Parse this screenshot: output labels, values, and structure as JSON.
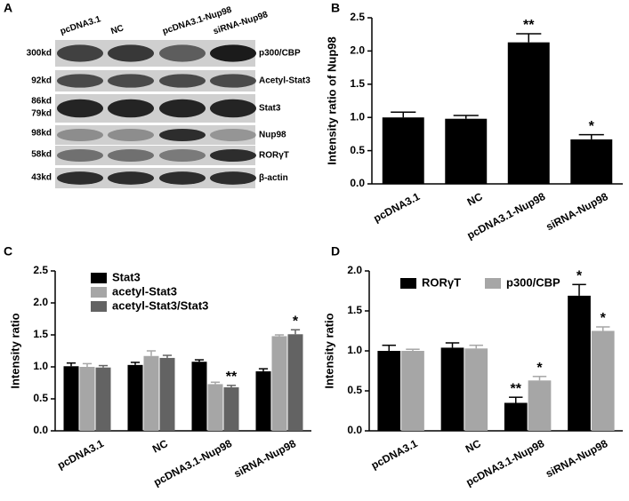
{
  "blot": {
    "panel_label": "A",
    "lanes": [
      "pcDNA3.1",
      "NC",
      "pcDNA3.1-Nup98",
      "siRNA-Nup98"
    ],
    "markers": [
      "300kd",
      "92kd",
      "86kd",
      "79kd",
      "98kd",
      "58kd",
      "43kd"
    ],
    "proteins": [
      "p300/CBP",
      "Acetyl-Stat3",
      "Stat3",
      "Nup98",
      "RORγT",
      "β-actin"
    ]
  },
  "chart_data": [
    {
      "type": "bar",
      "panel_label": "B",
      "ylabel": "Intensity ratio of Nup98",
      "categories": [
        "pcDNA3.1",
        "NC",
        "pcDNA3.1-Nup98",
        "siRNA-Nup98"
      ],
      "values": [
        1.0,
        0.98,
        2.13,
        0.67
      ],
      "errors": [
        0.08,
        0.05,
        0.13,
        0.07
      ],
      "significance": [
        null,
        null,
        "**",
        "*"
      ],
      "color": "#000000",
      "ylim": [
        0,
        2.5
      ],
      "yticks": [
        {
          "value": 0,
          "label": "0.0"
        },
        0.5,
        {
          "value": 1,
          "label": "1.0"
        },
        1.5,
        {
          "value": 2,
          "label": "2.0"
        },
        2.5
      ]
    },
    {
      "type": "bar",
      "panel_label": "C",
      "ylabel": "Intensity ratio",
      "categories": [
        "pcDNA3.1",
        "NC",
        "pcDNA3.1-Nup98",
        "siRNA-Nup98"
      ],
      "series": [
        {
          "name": "Stat3",
          "color": "#000000",
          "values": [
            1.01,
            1.03,
            1.08,
            0.93
          ],
          "errors": [
            0.05,
            0.04,
            0.03,
            0.04
          ],
          "significance": [
            null,
            null,
            null,
            null
          ]
        },
        {
          "name": "acetyl-Stat3",
          "color": "#a6a6a6",
          "values": [
            1.0,
            1.17,
            0.73,
            1.48
          ],
          "errors": [
            0.05,
            0.08,
            0.03,
            0.02
          ],
          "significance": [
            null,
            null,
            null,
            null
          ]
        },
        {
          "name": "acetyl-Stat3/Stat3",
          "color": "#636363",
          "values": [
            0.99,
            1.14,
            0.68,
            1.51
          ],
          "errors": [
            0.03,
            0.04,
            0.03,
            0.07
          ],
          "significance": [
            null,
            null,
            "**",
            "*"
          ]
        }
      ],
      "legend": "upper-left",
      "ylim": [
        0,
        2.5
      ],
      "yticks": [
        {
          "value": 0,
          "label": "0.0"
        },
        0.5,
        {
          "value": 1,
          "label": "1.0"
        },
        1.5,
        {
          "value": 2,
          "label": "2.0"
        },
        2.5
      ]
    },
    {
      "type": "bar",
      "panel_label": "D",
      "ylabel": "Intensity ratio",
      "categories": [
        "pcDNA3.1",
        "NC",
        "pcDNA3.1-Nup98",
        "siRNA-Nup98"
      ],
      "series": [
        {
          "name": "RORγT",
          "color": "#000000",
          "values": [
            1.0,
            1.04,
            0.35,
            1.69
          ],
          "errors": [
            0.07,
            0.06,
            0.07,
            0.14
          ],
          "significance": [
            null,
            null,
            "**",
            "*"
          ]
        },
        {
          "name": "p300/CBP",
          "color": "#a6a6a6",
          "values": [
            1.0,
            1.03,
            0.63,
            1.25
          ],
          "errors": [
            0.02,
            0.04,
            0.05,
            0.05
          ],
          "significance": [
            null,
            null,
            "*",
            "*"
          ]
        }
      ],
      "legend": "upper-center",
      "ylim": [
        0,
        2.0
      ],
      "yticks": [
        {
          "value": 0,
          "label": "0.0"
        },
        0.5,
        {
          "value": 1,
          "label": "1.0"
        },
        1.5,
        {
          "value": 2,
          "label": "2.0"
        }
      ]
    }
  ]
}
